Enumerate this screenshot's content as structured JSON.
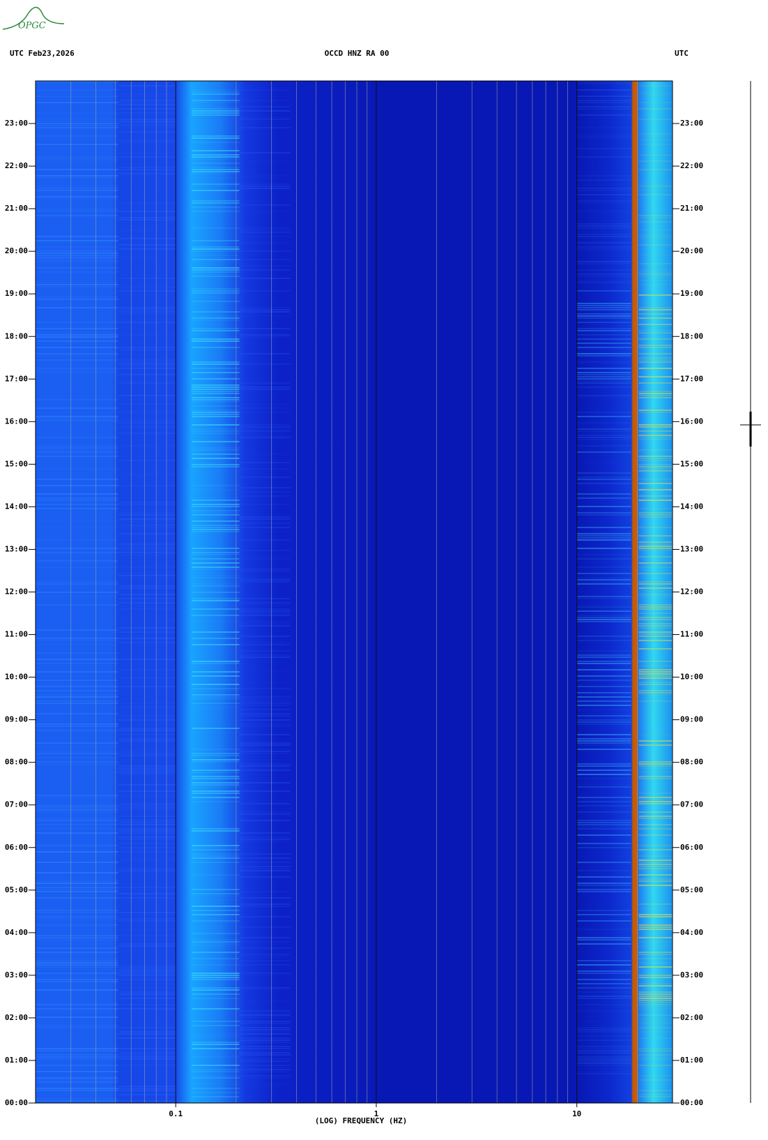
{
  "logo": "OPGC",
  "chart_data": {
    "type": "spectrogram",
    "title": "OCCD HNZ RA 00",
    "left_label": "UTC  Feb23,2026",
    "right_label": "UTC",
    "xlabel": "(LOG) FREQUENCY (HZ)",
    "xscale": "log",
    "xlim": [
      0.02,
      30
    ],
    "xticks": [
      0.1,
      1,
      10
    ],
    "ylim": [
      0,
      24
    ],
    "yticks": [
      {
        "value": 0,
        "label": "00:00"
      },
      {
        "value": 1,
        "label": "01:00"
      },
      {
        "value": 2,
        "label": "02:00"
      },
      {
        "value": 3,
        "label": "03:00"
      },
      {
        "value": 4,
        "label": "04:00"
      },
      {
        "value": 5,
        "label": "05:00"
      },
      {
        "value": 6,
        "label": "06:00"
      },
      {
        "value": 7,
        "label": "07:00"
      },
      {
        "value": 8,
        "label": "08:00"
      },
      {
        "value": 9,
        "label": "09:00"
      },
      {
        "value": 10,
        "label": "10:00"
      },
      {
        "value": 11,
        "label": "11:00"
      },
      {
        "value": 12,
        "label": "12:00"
      },
      {
        "value": 13,
        "label": "13:00"
      },
      {
        "value": 14,
        "label": "14:00"
      },
      {
        "value": 15,
        "label": "15:00"
      },
      {
        "value": 16,
        "label": "16:00"
      },
      {
        "value": 17,
        "label": "17:00"
      },
      {
        "value": 18,
        "label": "18:00"
      },
      {
        "value": 19,
        "label": "19:00"
      },
      {
        "value": 20,
        "label": "20:00"
      },
      {
        "value": 21,
        "label": "21:00"
      },
      {
        "value": 22,
        "label": "22:00"
      },
      {
        "value": 23,
        "label": "23:00"
      }
    ]
  }
}
